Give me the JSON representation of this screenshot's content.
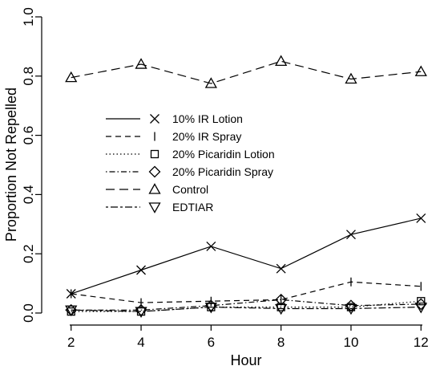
{
  "chart_data": {
    "type": "line",
    "xlabel": "Hour",
    "ylabel": "Proportion Not Repelled",
    "x": [
      2,
      4,
      6,
      8,
      10,
      12
    ],
    "xticks": [
      "2",
      "4",
      "6",
      "8",
      "10",
      "12"
    ],
    "yticks": [
      "0.0",
      "0.2",
      "0.4",
      "0.6",
      "0.8",
      "1.0"
    ],
    "xlim": [
      1.8,
      12.2
    ],
    "ylim": [
      0.0,
      1.0
    ],
    "grid": false,
    "legend_position": "center-left",
    "series": [
      {
        "name": "10% IR Lotion",
        "values": [
          0.065,
          0.145,
          0.225,
          0.15,
          0.265,
          0.32
        ],
        "dash": "solid",
        "marker": "x"
      },
      {
        "name": "20% IR Spray",
        "values": [
          0.065,
          0.035,
          0.04,
          0.045,
          0.105,
          0.09
        ],
        "dash": "dashed",
        "marker": "bar"
      },
      {
        "name": "20% Picaridin Lotion",
        "values": [
          0.005,
          0.005,
          0.02,
          0.02,
          0.02,
          0.04
        ],
        "dash": "dotted",
        "marker": "square"
      },
      {
        "name": "20% Picaridin Spray",
        "values": [
          0.01,
          0.01,
          0.025,
          0.045,
          0.025,
          0.03
        ],
        "dash": "dotdash",
        "marker": "diamond"
      },
      {
        "name": "Control",
        "values": [
          0.795,
          0.84,
          0.775,
          0.85,
          0.79,
          0.815
        ],
        "dash": "longdash",
        "marker": "triangle-up"
      },
      {
        "name": "EDTIAR",
        "values": [
          0.01,
          0.005,
          0.02,
          0.015,
          0.015,
          0.02
        ],
        "dash": "twodash",
        "marker": "triangle-down"
      }
    ]
  }
}
